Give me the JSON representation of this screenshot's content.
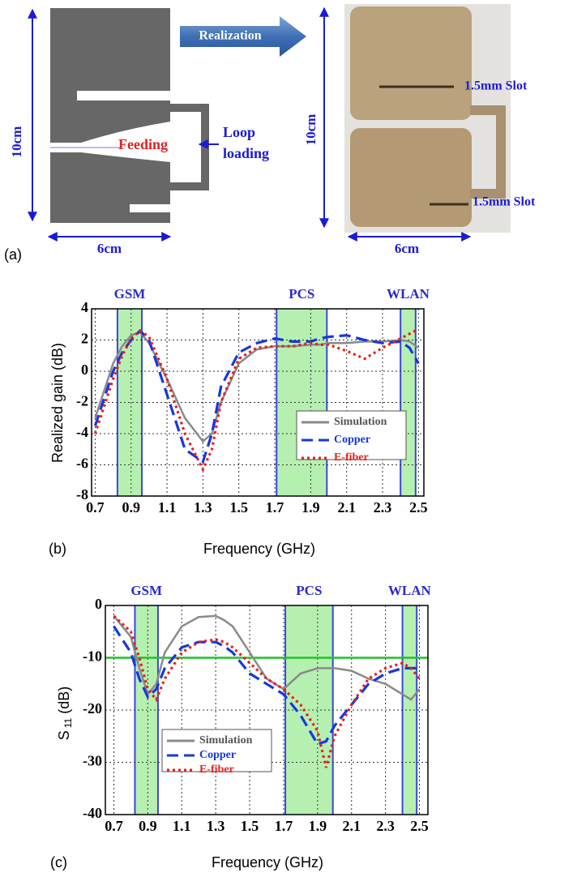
{
  "panel_a": {
    "label": "(a)",
    "arrow": "Realization",
    "feeding": "Feeding",
    "loop": "Loop",
    "loading": "loading",
    "height": "10cm",
    "width": "6cm",
    "photo_height": "10cm",
    "photo_width": "6cm",
    "slot_top": "1.5mm Slot",
    "slot_bottom": "1.5mm Slot"
  },
  "chart_data": [
    {
      "type": "line",
      "panel_label": "(b)",
      "xlabel": "Frequency (GHz)",
      "ylabel": "Realized gain (dB)",
      "xlim": [
        0.68,
        2.53
      ],
      "ylim": [
        -8,
        4
      ],
      "xticks": [
        0.7,
        0.9,
        1.1,
        1.3,
        1.5,
        1.7,
        1.9,
        2.1,
        2.3,
        2.5
      ],
      "yticks": [
        -8,
        -6,
        -4,
        -2,
        0,
        2,
        4
      ],
      "grid": true,
      "legend": "lower right",
      "bands": [
        {
          "label": "GSM",
          "range": [
            0.824,
            0.96
          ]
        },
        {
          "label": "PCS",
          "range": [
            1.71,
            1.99
          ]
        },
        {
          "label": "WLAN",
          "range": [
            2.4,
            2.484
          ]
        }
      ],
      "x": [
        0.7,
        0.8,
        0.85,
        0.9,
        0.95,
        1.0,
        1.1,
        1.2,
        1.3,
        1.35,
        1.4,
        1.5,
        1.6,
        1.7,
        1.8,
        1.9,
        1.95,
        2.0,
        2.1,
        2.2,
        2.3,
        2.4,
        2.45,
        2.5
      ],
      "series": [
        {
          "name": "Simulation",
          "color": "#8a8a8a",
          "style": "solid",
          "values": [
            -3,
            0.5,
            1.6,
            2.3,
            2.5,
            1.8,
            -0.5,
            -3,
            -4.5,
            -4,
            -2,
            0.5,
            1.4,
            1.6,
            1.6,
            1.7,
            1.7,
            1.8,
            1.8,
            1.9,
            1.9,
            2.0,
            1.9,
            1.5
          ]
        },
        {
          "name": "Copper",
          "color": "#1538e0",
          "style": "dashed",
          "values": [
            -3.5,
            0,
            1.2,
            2.0,
            2.6,
            2.0,
            -1.5,
            -5,
            -5.8,
            -4,
            -1,
            1.2,
            1.8,
            2.1,
            1.9,
            1.9,
            2.1,
            2.2,
            2.3,
            2.0,
            1.8,
            1.9,
            1.5,
            0.5
          ]
        },
        {
          "name": "E-fiber",
          "color": "#e8201a",
          "style": "dotted",
          "values": [
            -4,
            -0.5,
            1.0,
            2.1,
            2.6,
            2.2,
            -0.5,
            -4,
            -6.3,
            -5,
            -2,
            0.8,
            1.5,
            1.6,
            1.6,
            1.8,
            1.7,
            1.7,
            1.3,
            0.8,
            1.5,
            2.1,
            2.4,
            2.7
          ]
        }
      ]
    },
    {
      "type": "line",
      "panel_label": "(c)",
      "xlabel": "Frequency (GHz)",
      "ylabel": "S",
      "ylabel_sub": "11",
      "ylabel_unit": "(dB)",
      "xlim": [
        0.65,
        2.55
      ],
      "ylim": [
        -40,
        0
      ],
      "xticks": [
        0.7,
        0.9,
        1.1,
        1.3,
        1.5,
        1.7,
        1.9,
        2.1,
        2.3,
        2.5
      ],
      "yticks": [
        -40,
        -30,
        -20,
        -10,
        0
      ],
      "grid": true,
      "legend": "lower left",
      "threshold": {
        "value": -10,
        "color": "#22c02a"
      },
      "bands": [
        {
          "label": "GSM",
          "range": [
            0.824,
            0.96
          ]
        },
        {
          "label": "PCS",
          "range": [
            1.71,
            1.99
          ]
        },
        {
          "label": "WLAN",
          "range": [
            2.4,
            2.484
          ]
        }
      ],
      "x": [
        0.7,
        0.8,
        0.85,
        0.9,
        0.95,
        1.0,
        1.1,
        1.2,
        1.3,
        1.35,
        1.4,
        1.5,
        1.6,
        1.7,
        1.8,
        1.9,
        1.95,
        2.0,
        2.1,
        2.2,
        2.3,
        2.4,
        2.45,
        2.5
      ],
      "series": [
        {
          "name": "Simulation",
          "color": "#8a8a8a",
          "style": "solid",
          "values": [
            -2,
            -6,
            -12,
            -17,
            -15,
            -9,
            -4,
            -2.2,
            -2,
            -2.8,
            -4,
            -9,
            -14,
            -16,
            -13,
            -12,
            -12,
            -12,
            -12.5,
            -14,
            -15,
            -17,
            -18,
            -16
          ]
        },
        {
          "name": "Copper",
          "color": "#1538e0",
          "style": "dashed",
          "values": [
            -4,
            -9,
            -14,
            -17.5,
            -16,
            -12,
            -8,
            -7,
            -7,
            -7.8,
            -9,
            -13,
            -15,
            -17,
            -21,
            -26.5,
            -26,
            -23,
            -19,
            -15,
            -13,
            -12,
            -12,
            -12
          ]
        },
        {
          "name": "E-fiber",
          "color": "#e8201a",
          "style": "dotted",
          "values": [
            -2,
            -5,
            -10,
            -16,
            -18,
            -14,
            -9,
            -7,
            -6.5,
            -7,
            -8,
            -11,
            -14,
            -16,
            -19,
            -24,
            -31,
            -25,
            -19,
            -14,
            -12,
            -11,
            -12,
            -14
          ]
        }
      ]
    }
  ]
}
